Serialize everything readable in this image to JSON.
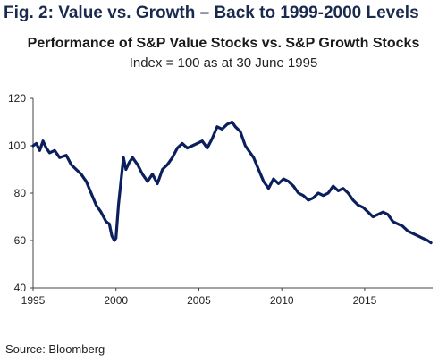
{
  "header": {
    "figure_label": "Fig. 2: Value vs. Growth – Back to 1999-2000 Levels"
  },
  "source_label": "Source: Bloomberg",
  "colors": {
    "line": "#0b1f5c",
    "axis": "#444444"
  },
  "chart_data": {
    "type": "line",
    "title": "Performance of S&P Value Stocks vs. S&P Growth Stocks",
    "subtitle": "Index = 100 as at 30 June 1995",
    "xlabel": "",
    "ylabel": "",
    "xlim": [
      1995,
      2019.1
    ],
    "ylim": [
      40,
      120
    ],
    "x_ticks": [
      1995,
      2000,
      2005,
      2010,
      2015
    ],
    "x_tick_labels": [
      "1995",
      "2000",
      "2005",
      "2010",
      "2015"
    ],
    "y_ticks": [
      40,
      60,
      80,
      100,
      120
    ],
    "y_tick_labels": [
      "40",
      "60",
      "80",
      "100",
      "120"
    ],
    "grid": false,
    "series": [
      {
        "name": "",
        "x": [
          1995.0,
          1995.2,
          1995.4,
          1995.6,
          1995.8,
          1996.0,
          1996.3,
          1996.6,
          1997.0,
          1997.3,
          1997.6,
          1997.9,
          1998.2,
          1998.5,
          1998.8,
          1999.1,
          1999.4,
          1999.6,
          1999.75,
          1999.9,
          2000.0,
          2000.15,
          2000.3,
          2000.45,
          2000.6,
          2000.8,
          2001.0,
          2001.3,
          2001.6,
          2001.9,
          2002.2,
          2002.5,
          2002.8,
          2003.1,
          2003.4,
          2003.7,
          2004.0,
          2004.3,
          2004.6,
          2004.9,
          2005.2,
          2005.5,
          2005.8,
          2006.1,
          2006.4,
          2006.7,
          2007.0,
          2007.2,
          2007.5,
          2007.8,
          2008.0,
          2008.3,
          2008.6,
          2008.9,
          2009.2,
          2009.5,
          2009.8,
          2010.1,
          2010.4,
          2010.7,
          2011.0,
          2011.3,
          2011.6,
          2011.9,
          2012.2,
          2012.5,
          2012.8,
          2013.1,
          2013.4,
          2013.7,
          2014.0,
          2014.3,
          2014.6,
          2014.9,
          2015.2,
          2015.5,
          2015.8,
          2016.1,
          2016.4,
          2016.7,
          2017.0,
          2017.3,
          2017.6,
          2017.9,
          2018.2,
          2018.5,
          2018.8,
          2019.0
        ],
        "y": [
          100,
          101,
          98,
          102,
          99,
          97,
          98,
          95,
          96,
          92,
          90,
          88,
          85,
          80,
          75,
          72,
          68,
          67,
          62,
          60,
          61,
          75,
          85,
          95,
          90,
          93,
          95,
          92,
          88,
          85,
          88,
          84,
          90,
          92,
          95,
          99,
          101,
          99,
          100,
          101,
          102,
          99,
          103,
          108,
          107,
          109,
          110,
          108,
          106,
          100,
          98,
          95,
          90,
          85,
          82,
          86,
          84,
          86,
          85,
          83,
          80,
          79,
          77,
          78,
          80,
          79,
          80,
          83,
          81,
          82,
          80,
          77,
          75,
          74,
          72,
          70,
          71,
          72,
          71,
          68,
          67,
          66,
          64,
          63,
          62,
          61,
          60,
          59
        ]
      }
    ]
  }
}
